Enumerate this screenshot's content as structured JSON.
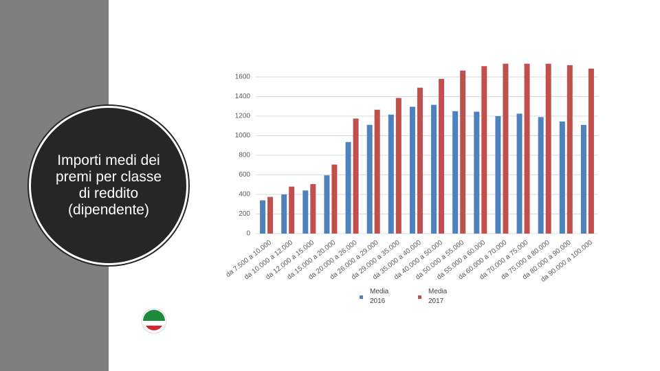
{
  "slide_title": "Importi medi dei premi per classe di reddito (dipendente)",
  "chart_data": {
    "type": "bar",
    "categories": [
      "da 7.500 a 10.000",
      "da 10.000 a 12.000",
      "da 12.000 a 15.000",
      "da 15.000 a 20.000",
      "da 20.000 a 26.000",
      "da 26.000 a 29.000",
      "da 29.000 a 35.000",
      "da 35.000 a 40.000",
      "da 40.000 a 50.000",
      "da 50.000 a 55.000",
      "da 55.000 a 60.000",
      "da 60.000 a 70.000",
      "da 70.000 a 75.000",
      "da 75.000 a 80.000",
      "da 80.000 a 90.000",
      "da 90.000 a 100.000"
    ],
    "series": [
      {
        "name": "Media 2016",
        "color": "#4f81bd",
        "values": [
          340,
          400,
          440,
          595,
          935,
          1110,
          1215,
          1295,
          1315,
          1250,
          1245,
          1200,
          1225,
          1190,
          1145,
          1110
        ]
      },
      {
        "name": "Media 2017",
        "color": "#c0504d",
        "values": [
          375,
          480,
          505,
          705,
          1175,
          1265,
          1385,
          1490,
          1580,
          1665,
          1710,
          1735,
          1735,
          1735,
          1720,
          1685
        ]
      }
    ],
    "ylim": [
      0,
      1740
    ],
    "yticks": [
      0,
      200,
      400,
      600,
      800,
      1000,
      1200,
      1400,
      1600
    ],
    "grid": true,
    "legend": "bottom"
  }
}
